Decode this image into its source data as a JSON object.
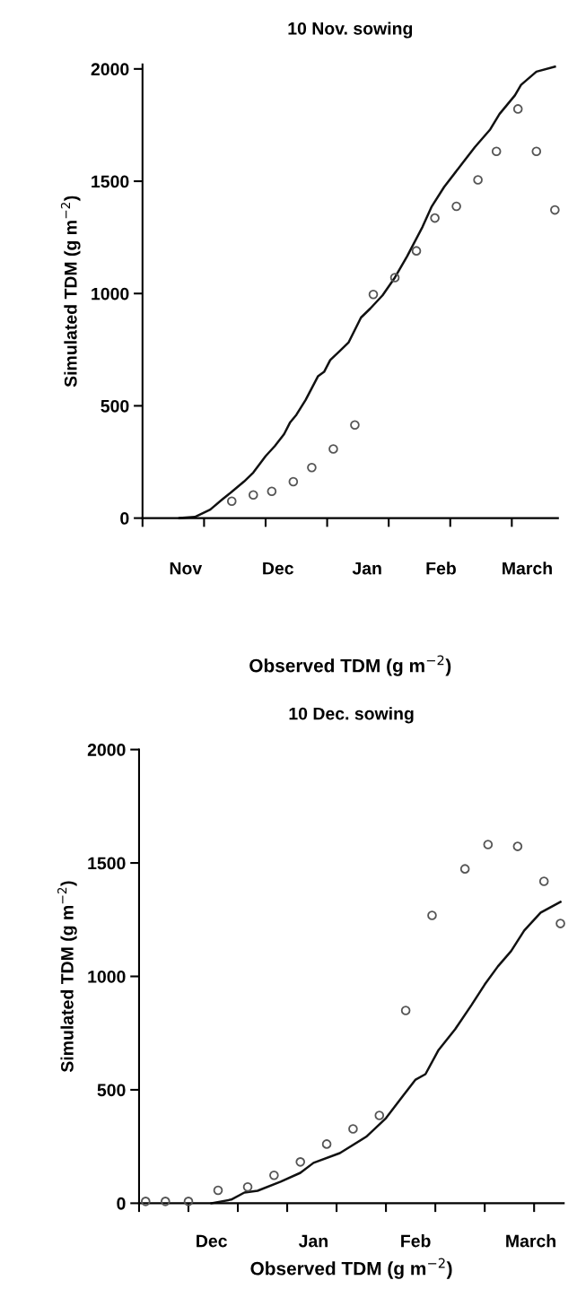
{
  "chart_data": [
    {
      "type": "line",
      "title": "10 Nov. sowing",
      "xlabel": "Observed TDM (g m$^{−2}$)",
      "ylabel": "Simulated TDM (g m$^{−2}$)",
      "xlim": [
        "2000-11-01",
        "2001-03-16"
      ],
      "ylim": [
        0,
        2020
      ],
      "yticks": [
        0,
        500,
        1000,
        1500,
        2000
      ],
      "xticks": [
        {
          "value": "2000-11-01",
          "label": null
        },
        {
          "value": "2000-11-21",
          "label": null
        },
        {
          "value": "2000-12-11",
          "label": null
        },
        {
          "value": "2000-12-31",
          "label": null
        },
        {
          "value": "2001-01-20",
          "label": null
        },
        {
          "value": "2001-02-09",
          "label": null
        },
        {
          "value": "2001-03-01",
          "label": null
        },
        {
          "value": "2000-11-15",
          "label": "Nov"
        },
        {
          "value": "2000-12-15",
          "label": "Dec"
        },
        {
          "value": "2001-01-13",
          "label": "Jan"
        },
        {
          "value": "2001-02-06",
          "label": "Feb"
        },
        {
          "value": "2001-03-06",
          "label": "March"
        }
      ],
      "grid": false,
      "series": [
        {
          "color": "#111111",
          "line_style": "solid",
          "marker": "none",
          "x": [
            "2000-11-13",
            "2000-11-18",
            "2000-11-23",
            "2000-11-27",
            "2000-11-30",
            "2000-12-04",
            "2000-12-07",
            "2000-12-11",
            "2000-12-14",
            "2000-12-17",
            "2000-12-19",
            "2000-12-21",
            "2000-12-24",
            "2000-12-28",
            "2000-12-30",
            "2001-01-01",
            "2001-01-04",
            "2001-01-07",
            "2001-01-11",
            "2001-01-14",
            "2001-01-18",
            "2001-01-22",
            "2001-01-26",
            "2001-01-31",
            "2001-02-03",
            "2001-02-07",
            "2001-02-13",
            "2001-02-17",
            "2001-02-22",
            "2001-02-25",
            "2001-03-02",
            "2001-03-04",
            "2001-03-09",
            "2001-03-15"
          ],
          "values": [
            0,
            5,
            38,
            84,
            117,
            163,
            203,
            276,
            321,
            374,
            427,
            460,
            526,
            631,
            651,
            704,
            743,
            783,
            893,
            933,
            992,
            1071,
            1166,
            1297,
            1388,
            1474,
            1581,
            1652,
            1731,
            1799,
            1882,
            1929,
            1988,
            2010
          ]
        },
        {
          "type": "scatter",
          "color": "#555555",
          "marker": "circle",
          "x": [
            "2000-11-30",
            "2000-12-07",
            "2000-12-13",
            "2000-12-20",
            "2000-12-26",
            "2001-01-02",
            "2001-01-09",
            "2001-01-15",
            "2001-01-22",
            "2001-01-29",
            "2001-02-04",
            "2001-02-11",
            "2001-02-18",
            "2001-02-24",
            "2001-03-03",
            "2001-03-09",
            "2001-03-15"
          ],
          "values": [
            75,
            103,
            119,
            162,
            225,
            308,
            415,
            996,
            1071,
            1190,
            1336,
            1388,
            1506,
            1633,
            1822,
            1633,
            1372
          ]
        }
      ]
    },
    {
      "type": "line",
      "title": "10 Dec. sowing",
      "xlabel": "Observed TDM (g m$^{−2}$)",
      "ylabel": "Simulated TDM (g m$^{−2}$)",
      "xlim": [
        "2000-11-22",
        "2001-03-31"
      ],
      "ylim": [
        0,
        2000
      ],
      "yticks": [
        0,
        500,
        1000,
        1500,
        2000
      ],
      "xticks": [
        {
          "value": "2000-11-22",
          "label": null
        },
        {
          "value": "2000-12-07",
          "label": null
        },
        {
          "value": "2000-12-22",
          "label": null
        },
        {
          "value": "2001-01-06",
          "label": null
        },
        {
          "value": "2001-01-21",
          "label": null
        },
        {
          "value": "2001-02-05",
          "label": null
        },
        {
          "value": "2001-02-20",
          "label": null
        },
        {
          "value": "2001-03-07",
          "label": null
        },
        {
          "value": "2001-03-22",
          "label": null
        },
        {
          "value": "2000-12-14",
          "label": "Dec"
        },
        {
          "value": "2001-01-14",
          "label": "Jan"
        },
        {
          "value": "2001-02-14",
          "label": "Feb"
        },
        {
          "value": "2001-03-21",
          "label": "March"
        }
      ],
      "grid": false,
      "series": [
        {
          "color": "#111111",
          "line_style": "solid",
          "marker": "none",
          "x": [
            "2000-12-14",
            "2000-12-20",
            "2000-12-24",
            "2000-12-28",
            "2001-01-04",
            "2001-01-10",
            "2001-01-14",
            "2001-01-22",
            "2001-01-30",
            "2001-02-05",
            "2001-02-10",
            "2001-02-14",
            "2001-02-17",
            "2001-02-21",
            "2001-02-26",
            "2001-03-03",
            "2001-03-07",
            "2001-03-11",
            "2001-03-15",
            "2001-03-19",
            "2001-03-24",
            "2001-03-30"
          ],
          "values": [
            0,
            16,
            47,
            55,
            95,
            134,
            178,
            221,
            293,
            375,
            470,
            545,
            569,
            676,
            767,
            874,
            964,
            1044,
            1111,
            1202,
            1281,
            1328
          ]
        },
        {
          "type": "scatter",
          "color": "#555555",
          "marker": "circle",
          "x": [
            "2000-11-24",
            "2000-11-30",
            "2000-12-07",
            "2000-12-16",
            "2000-12-25",
            "2001-01-02",
            "2001-01-10",
            "2001-01-18",
            "2001-01-26",
            "2001-02-03",
            "2001-02-11",
            "2001-02-19",
            "2001-03-01",
            "2001-03-08",
            "2001-03-17",
            "2001-03-25",
            "2001-03-30"
          ],
          "values": [
            8,
            8,
            8,
            57,
            72,
            123,
            182,
            261,
            328,
            387,
            850,
            1269,
            1474,
            1581,
            1573,
            1419,
            1233
          ]
        }
      ]
    }
  ]
}
